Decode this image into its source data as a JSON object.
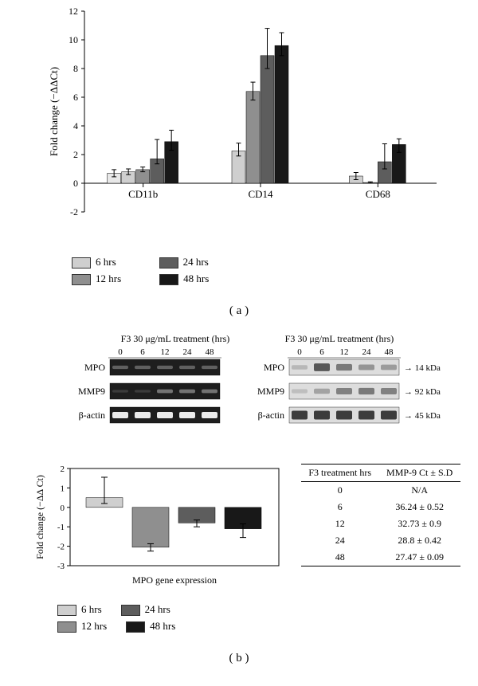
{
  "panelA_label": "( a )",
  "panelB_label": "( b )",
  "chartA": {
    "type": "bar",
    "ylabel": "Fold change (−ΔΔCt)",
    "ylim": [
      -2,
      12
    ],
    "yticks": [
      -2,
      0,
      2,
      4,
      6,
      8,
      10,
      12
    ],
    "groups": [
      "CD11b",
      "CD14",
      "CD68"
    ],
    "series_labels": [
      "6 hrs",
      "12 hrs",
      "24 hrs",
      "48 hrs"
    ],
    "series_colors": [
      "#cfcfcf",
      "#8f8f8f",
      "#5d5d5d",
      "#181818"
    ],
    "value_color": "#000000",
    "axis_color": "#000000",
    "background_color": "#ffffff",
    "label_fontsize": 12,
    "data": {
      "CD11b": [
        {
          "v": 0.7,
          "lo": 0.25,
          "hi": 0.25
        },
        {
          "v": 0.8,
          "lo": 0.2,
          "hi": 0.2
        },
        {
          "v": 0.95,
          "lo": 0.15,
          "hi": 0.18
        },
        {
          "v": 1.7,
          "lo": 0.35,
          "hi": 1.35
        },
        {
          "v": 2.9,
          "lo": 0.6,
          "hi": 0.8
        }
      ],
      "CD14": [
        {
          "v": 2.25,
          "lo": 0.35,
          "hi": 0.55
        },
        {
          "v": 6.4,
          "lo": 0.6,
          "hi": 0.65
        },
        {
          "v": 8.9,
          "lo": 0.9,
          "hi": 1.9
        },
        {
          "v": 9.6,
          "lo": 0.7,
          "hi": 0.9
        }
      ],
      "CD68": [
        {
          "v": 0.5,
          "lo": 0.25,
          "hi": 0.25
        },
        {
          "v": 0.05,
          "lo": 0.05,
          "hi": 0.05
        },
        {
          "v": 1.5,
          "lo": 0.5,
          "hi": 1.25
        },
        {
          "v": 2.7,
          "lo": 0.55,
          "hi": 0.4
        }
      ]
    },
    "note": "CD11b series has 5 visually distinct bars in source (0-hr faint included)"
  },
  "gel": {
    "left_header": "F3 30 μg/mL treatment (hrs)",
    "right_header": "F3 30 μg/mL treatment (hrs)",
    "timepoints": [
      "0",
      "6",
      "12",
      "24",
      "48"
    ],
    "rows": [
      "MPO",
      "MMP9",
      "β-actin"
    ],
    "mw": {
      "MPO": "→ 14 kDa",
      "MMP9": "→ 92 kDa",
      "β-actin": "→ 45 kDa"
    },
    "band_bg": "#2b2b2b",
    "band_fg": "#cfcfcf"
  },
  "chartB": {
    "type": "bar",
    "ylabel": "Fold change (−ΔΔ Ct)",
    "xlabel": "MPO gene expression",
    "ylim": [
      -3,
      2
    ],
    "yticks": [
      -3,
      -2,
      -1,
      0,
      1,
      2
    ],
    "series_labels": [
      "6 hrs",
      "12 hrs",
      "24 hrs",
      "48 hrs"
    ],
    "series_colors": [
      "#cfcfcf",
      "#8f8f8f",
      "#5d5d5d",
      "#181818"
    ],
    "data": [
      {
        "v": 0.5,
        "lo": 0.3,
        "hi": 1.05
      },
      {
        "v": -2.05,
        "lo": 0.2,
        "hi": 0.18
      },
      {
        "v": -0.8,
        "lo": 0.2,
        "hi": 0.15
      },
      {
        "v": -1.1,
        "lo": 0.45,
        "hi": 0.25
      }
    ]
  },
  "legendB": {
    "labels": [
      "6 hrs",
      "12 hrs",
      "24 hrs",
      "48 hrs"
    ],
    "colors": [
      "#cfcfcf",
      "#8f8f8f",
      "#5d5d5d",
      "#181818"
    ]
  },
  "table": {
    "col1": "F3 treatment hrs",
    "col2": "MMP-9 Ct ± S.D",
    "rows": [
      [
        "0",
        "N/A"
      ],
      [
        "6",
        "36.24 ± 0.52"
      ],
      [
        "12",
        "32.73 ± 0.9"
      ],
      [
        "24",
        "28.8 ± 0.42"
      ],
      [
        "48",
        "27.47 ± 0.09"
      ]
    ]
  }
}
